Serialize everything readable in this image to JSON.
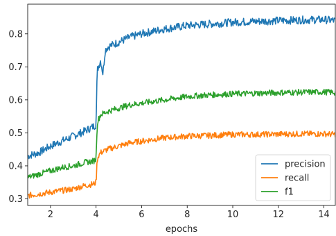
{
  "chart_data": {
    "type": "line",
    "xlabel": "epochs",
    "ylabel": "",
    "title": "",
    "xlim": [
      1.0,
      14.5
    ],
    "ylim": [
      0.28,
      0.89
    ],
    "xticks": [
      2,
      4,
      6,
      8,
      10,
      12,
      14
    ],
    "yticks": [
      0.3,
      0.4,
      0.5,
      0.6,
      0.7,
      0.8
    ],
    "legend_position": "lower-right",
    "grid": false,
    "colors": {
      "precision": "#1f77b4",
      "recall": "#ff7f0e",
      "f1": "#2ca02c"
    },
    "series": [
      {
        "name": "precision",
        "color": "#1f77b4",
        "x": [
          1.0,
          1.5,
          2.0,
          2.5,
          3.0,
          3.5,
          3.9,
          4.0,
          4.05,
          4.1,
          4.2,
          4.3,
          4.4,
          4.5,
          5.0,
          5.5,
          6.0,
          7.0,
          8.0,
          9.0,
          10.0,
          11.0,
          12.0,
          13.0,
          14.0,
          14.5
        ],
        "y": [
          0.43,
          0.44,
          0.46,
          0.475,
          0.49,
          0.505,
          0.52,
          0.525,
          0.69,
          0.7,
          0.72,
          0.68,
          0.75,
          0.76,
          0.775,
          0.79,
          0.8,
          0.815,
          0.825,
          0.83,
          0.835,
          0.838,
          0.84,
          0.842,
          0.843,
          0.84
        ]
      },
      {
        "name": "recall",
        "color": "#ff7f0e",
        "x": [
          1.0,
          1.5,
          2.0,
          2.5,
          3.0,
          3.5,
          3.9,
          4.0,
          4.05,
          4.1,
          4.2,
          4.5,
          5.0,
          5.5,
          6.0,
          7.0,
          8.0,
          9.0,
          10.0,
          11.0,
          12.0,
          13.0,
          14.0,
          14.5
        ],
        "y": [
          0.31,
          0.315,
          0.32,
          0.325,
          0.33,
          0.34,
          0.345,
          0.35,
          0.42,
          0.43,
          0.44,
          0.45,
          0.46,
          0.47,
          0.475,
          0.485,
          0.49,
          0.492,
          0.495,
          0.495,
          0.496,
          0.497,
          0.497,
          0.495
        ]
      },
      {
        "name": "f1",
        "color": "#2ca02c",
        "x": [
          1.0,
          1.5,
          2.0,
          2.5,
          3.0,
          3.5,
          3.9,
          4.0,
          4.05,
          4.1,
          4.2,
          4.5,
          5.0,
          5.5,
          6.0,
          7.0,
          8.0,
          9.0,
          10.0,
          11.0,
          12.0,
          13.0,
          14.0,
          14.5
        ],
        "y": [
          0.365,
          0.375,
          0.385,
          0.395,
          0.4,
          0.41,
          0.415,
          0.42,
          0.53,
          0.54,
          0.555,
          0.565,
          0.575,
          0.585,
          0.59,
          0.6,
          0.61,
          0.615,
          0.618,
          0.62,
          0.622,
          0.623,
          0.624,
          0.622
        ]
      }
    ]
  }
}
